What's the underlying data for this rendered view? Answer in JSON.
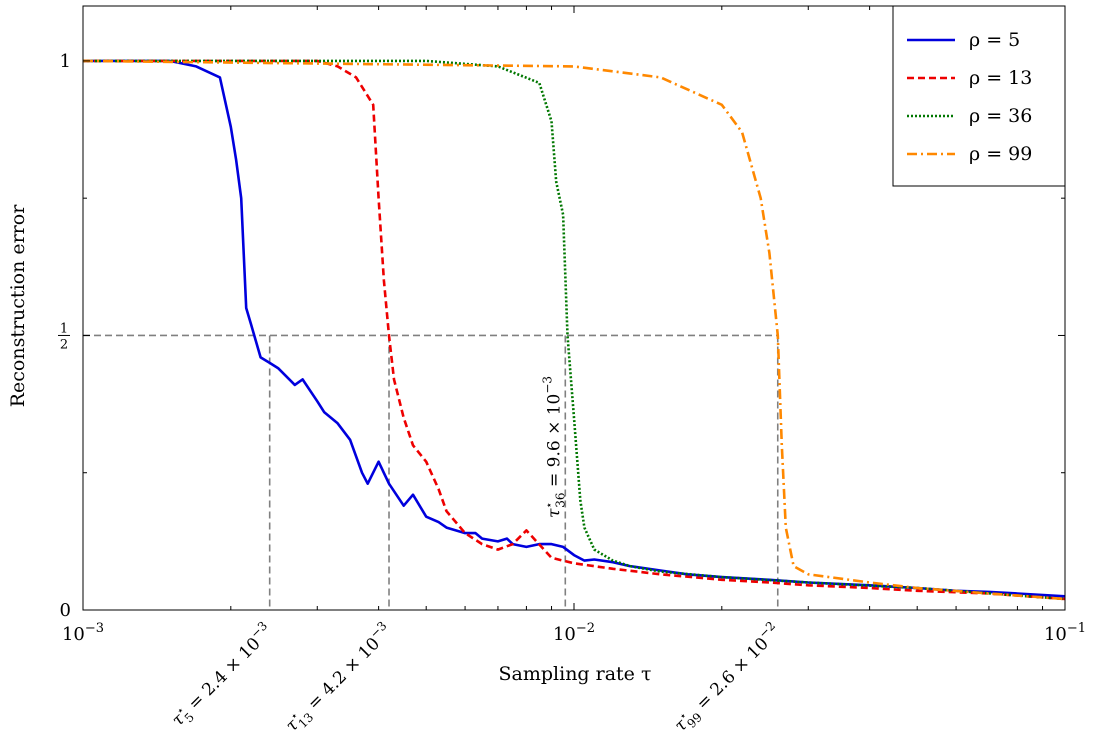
{
  "chart_data": {
    "type": "line",
    "xlabel": "Sampling rate τ",
    "ylabel": "Reconstruction error",
    "xscale": "log",
    "xlim": [
      0.001,
      0.1
    ],
    "ylim": [
      0,
      1.1
    ],
    "grid": false,
    "legend_position": "top-right",
    "x_ticks": [
      {
        "value": 0.001,
        "base": "10",
        "exp": "−3"
      },
      {
        "value": 0.01,
        "base": "10",
        "exp": "−2"
      },
      {
        "value": 0.1,
        "base": "10",
        "exp": "−1"
      }
    ],
    "y_ticks": [
      {
        "value": 0,
        "label": "0"
      },
      {
        "value": 0.5,
        "num": "1",
        "den": "2"
      },
      {
        "value": 1,
        "label": "1"
      }
    ],
    "half_line": 0.5,
    "series": [
      {
        "name": "ρ = 5",
        "rho": "5",
        "color": "#0000dd",
        "dash": "solid",
        "x": [
          0.001,
          0.0013,
          0.0015,
          0.0017,
          0.0019,
          0.002,
          0.00205,
          0.0021,
          0.00215,
          0.0022,
          0.0023,
          0.0024,
          0.0025,
          0.0027,
          0.0028,
          0.003,
          0.0031,
          0.0033,
          0.0035,
          0.0037,
          0.0038,
          0.004,
          0.0042,
          0.0045,
          0.0047,
          0.005,
          0.0053,
          0.0055,
          0.006,
          0.0063,
          0.0065,
          0.007,
          0.0073,
          0.0075,
          0.008,
          0.0085,
          0.009,
          0.0095,
          0.01,
          0.0105,
          0.011,
          0.012,
          0.013,
          0.015,
          0.017,
          0.02,
          0.025,
          0.03,
          0.04,
          0.05,
          0.06,
          0.07,
          0.08,
          0.1
        ],
        "y": [
          1.0,
          1.0,
          1.0,
          0.99,
          0.97,
          0.88,
          0.82,
          0.75,
          0.55,
          0.52,
          0.46,
          0.45,
          0.44,
          0.41,
          0.42,
          0.38,
          0.36,
          0.34,
          0.31,
          0.25,
          0.23,
          0.27,
          0.23,
          0.19,
          0.21,
          0.17,
          0.16,
          0.15,
          0.14,
          0.14,
          0.13,
          0.125,
          0.13,
          0.12,
          0.115,
          0.12,
          0.12,
          0.115,
          0.1,
          0.09,
          0.092,
          0.087,
          0.08,
          0.072,
          0.065,
          0.06,
          0.055,
          0.05,
          0.045,
          0.04,
          0.035,
          0.033,
          0.03,
          0.025
        ]
      },
      {
        "name": "ρ = 13",
        "rho": "13",
        "color": "#ee0000",
        "dash": "dashed",
        "x": [
          0.001,
          0.002,
          0.003,
          0.0033,
          0.0036,
          0.0039,
          0.004,
          0.0041,
          0.0042,
          0.0043,
          0.0045,
          0.0047,
          0.005,
          0.0053,
          0.0055,
          0.006,
          0.0065,
          0.007,
          0.0075,
          0.008,
          0.009,
          0.01,
          0.012,
          0.015,
          0.02,
          0.025,
          0.03,
          0.04,
          0.05,
          0.07,
          0.1
        ],
        "y": [
          1.0,
          1.0,
          1.0,
          0.99,
          0.97,
          0.92,
          0.75,
          0.6,
          0.5,
          0.42,
          0.35,
          0.3,
          0.27,
          0.22,
          0.18,
          0.14,
          0.12,
          0.11,
          0.12,
          0.145,
          0.095,
          0.085,
          0.075,
          0.065,
          0.055,
          0.05,
          0.045,
          0.04,
          0.035,
          0.03,
          0.02
        ]
      },
      {
        "name": "ρ = 36",
        "rho": "36",
        "color": "#007700",
        "dash": "dotted",
        "x": [
          0.001,
          0.005,
          0.007,
          0.0085,
          0.009,
          0.0092,
          0.0095,
          0.0097,
          0.01,
          0.0103,
          0.0105,
          0.011,
          0.012,
          0.013,
          0.015,
          0.02,
          0.03,
          0.05,
          0.1
        ],
        "y": [
          1.0,
          1.0,
          0.99,
          0.96,
          0.89,
          0.78,
          0.72,
          0.5,
          0.35,
          0.2,
          0.15,
          0.11,
          0.09,
          0.08,
          0.07,
          0.06,
          0.05,
          0.04,
          0.02
        ]
      },
      {
        "name": "ρ = 99",
        "rho": "99",
        "color": "#ff8800",
        "dash": "dashdot",
        "x": [
          0.001,
          0.01,
          0.015,
          0.02,
          0.022,
          0.024,
          0.025,
          0.026,
          0.0265,
          0.027,
          0.028,
          0.03,
          0.04,
          0.05,
          0.07,
          0.1
        ],
        "y": [
          1.0,
          0.99,
          0.97,
          0.92,
          0.87,
          0.75,
          0.65,
          0.5,
          0.3,
          0.15,
          0.08,
          0.065,
          0.05,
          0.04,
          0.03,
          0.02
        ]
      }
    ],
    "markers": [
      {
        "value": 0.0024,
        "sub": "5",
        "mant": "2.4",
        "exp": "−3",
        "orientation": "rotated"
      },
      {
        "value": 0.0042,
        "sub": "13",
        "mant": "4.2",
        "exp": "−3",
        "orientation": "rotated"
      },
      {
        "value": 0.0096,
        "sub": "36",
        "mant": "9.6",
        "exp": "−3",
        "orientation": "vertical"
      },
      {
        "value": 0.026,
        "sub": "99",
        "mant": "2.6",
        "exp": "−2",
        "orientation": "rotated"
      }
    ],
    "marker_symbol": "τ",
    "marker_star": "⋆",
    "times_symbol": "×"
  }
}
